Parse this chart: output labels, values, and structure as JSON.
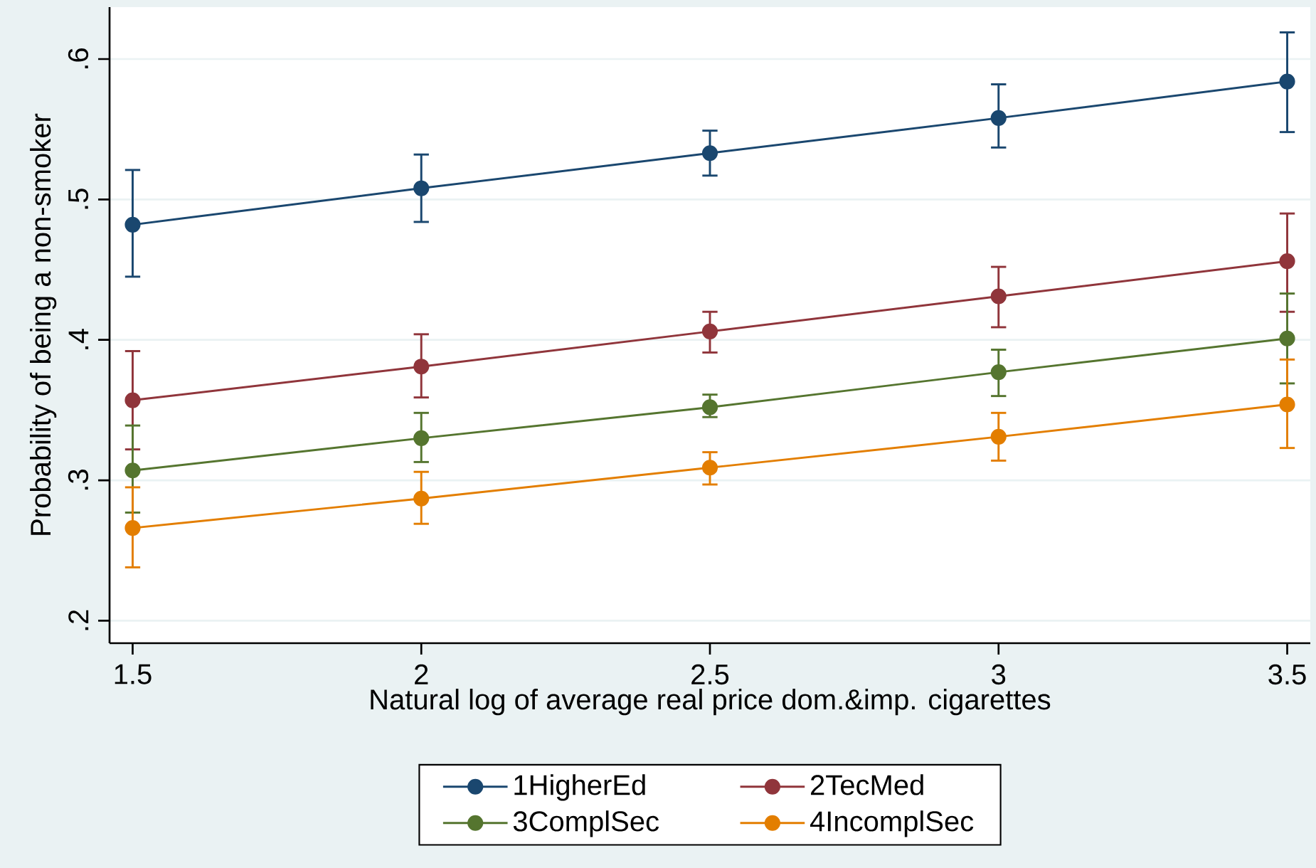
{
  "chart_data": {
    "type": "line",
    "xlabel": "Natural log of average real price dom.&imp. cigarettes",
    "ylabel": "Probability of being a non-smoker",
    "x": [
      1.5,
      2,
      2.5,
      3,
      3.5
    ],
    "xlim": [
      1.46,
      3.54
    ],
    "xticks": [
      1.5,
      2,
      2.5,
      3,
      3.5
    ],
    "ylim": [
      0.184,
      0.637
    ],
    "yticks": [
      {
        "value": 0.2,
        "label": ".2"
      },
      {
        "value": 0.3,
        "label": ".3"
      },
      {
        "value": 0.4,
        "label": ".4"
      },
      {
        "value": 0.5,
        "label": ".5"
      },
      {
        "value": 0.6,
        "label": ".6"
      }
    ],
    "grid": "y",
    "legend": "bottom",
    "marker": "circle",
    "line_style": "solid",
    "series": [
      {
        "name": "1HigherEd",
        "color": "#1a476f",
        "values": [
          0.482,
          0.508,
          0.533,
          0.558,
          0.584
        ],
        "errors": [
          [
            0.445,
            0.521
          ],
          [
            0.484,
            0.532
          ],
          [
            0.517,
            0.549
          ],
          [
            0.537,
            0.582
          ],
          [
            0.548,
            0.619
          ]
        ]
      },
      {
        "name": "2TecMed",
        "color": "#90353b",
        "values": [
          0.357,
          0.381,
          0.406,
          0.431,
          0.456
        ],
        "errors": [
          [
            0.322,
            0.392
          ],
          [
            0.359,
            0.404
          ],
          [
            0.391,
            0.42
          ],
          [
            0.409,
            0.452
          ],
          [
            0.42,
            0.49
          ]
        ]
      },
      {
        "name": "3ComplSec",
        "color": "#55752f",
        "values": [
          0.307,
          0.33,
          0.352,
          0.377,
          0.401
        ],
        "errors": [
          [
            0.277,
            0.339
          ],
          [
            0.313,
            0.348
          ],
          [
            0.345,
            0.361
          ],
          [
            0.36,
            0.393
          ],
          [
            0.369,
            0.433
          ]
        ]
      },
      {
        "name": "4IncomplSec",
        "color": "#e37e00",
        "values": [
          0.266,
          0.287,
          0.309,
          0.331,
          0.354
        ],
        "errors": [
          [
            0.238,
            0.295
          ],
          [
            0.269,
            0.306
          ],
          [
            0.297,
            0.32
          ],
          [
            0.314,
            0.348
          ],
          [
            0.323,
            0.386
          ]
        ]
      }
    ]
  }
}
